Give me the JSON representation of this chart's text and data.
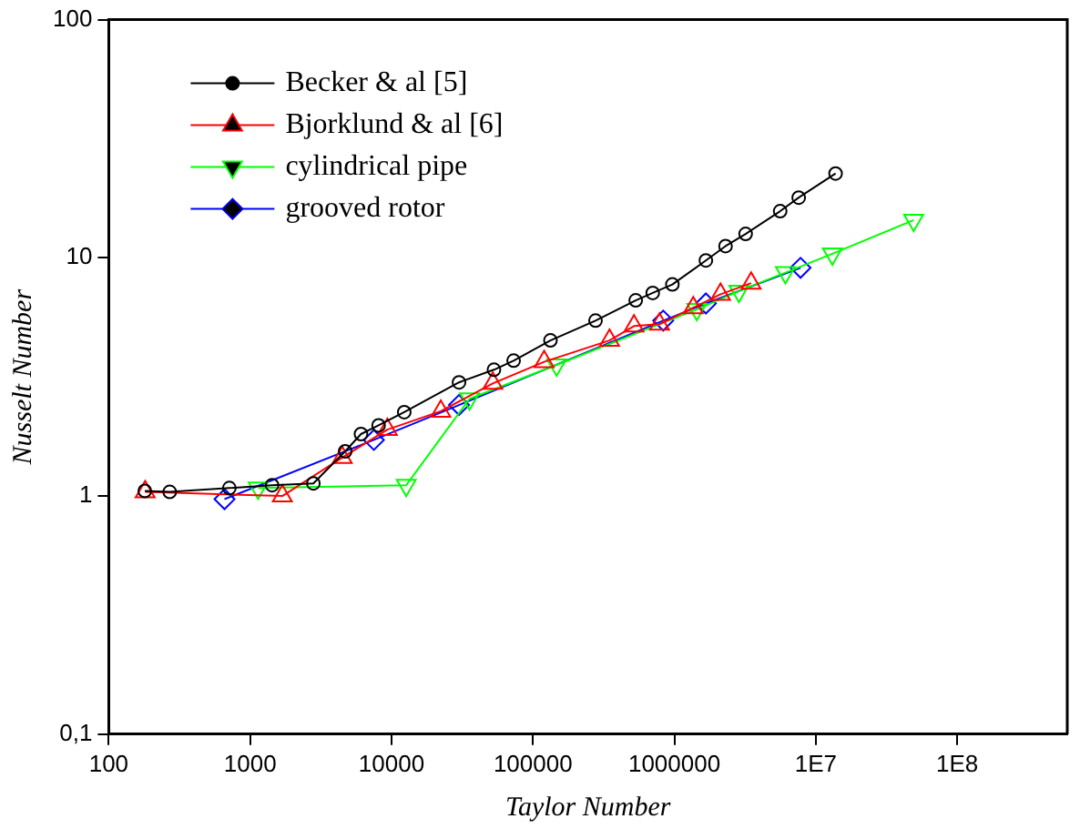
{
  "chart_data": {
    "type": "line",
    "xlabel": "Taylor Number",
    "ylabel": "Nusselt Number",
    "log": "xy",
    "grid": false,
    "legend": "top left",
    "line_style": "solid",
    "xlim": [
      100,
      600000000
    ],
    "ylim": [
      0.1,
      100
    ],
    "xticks": [
      100,
      1000,
      10000,
      100000,
      1000000,
      {
        "value": 10000000,
        "label": "1E7"
      },
      {
        "value": 100000000,
        "label": "1E8"
      }
    ],
    "yticks": [
      {
        "value": 0.1,
        "label": "0,1"
      },
      1,
      10,
      100
    ],
    "series": [
      {
        "name": "Becker & al [5]",
        "color": "#000000",
        "marker": "circle",
        "x": [
          180,
          270,
          713,
          1430,
          2800,
          4700,
          6080,
          8100,
          12300,
          30000,
          53000,
          73000,
          133000,
          277000,
          533000,
          703000,
          968000,
          1670000,
          2300000,
          3190000,
          5600000,
          7570000,
          13800000
        ],
        "values": [
          1.05,
          1.04,
          1.08,
          1.11,
          1.13,
          1.54,
          1.82,
          1.98,
          2.25,
          3.0,
          3.39,
          3.7,
          4.5,
          5.45,
          6.63,
          7.12,
          7.73,
          9.75,
          11.2,
          12.6,
          15.7,
          17.9,
          22.6
        ]
      },
      {
        "name": "Bjorklund & al [6]",
        "color": "#ff0000",
        "marker": "triangle",
        "x": [
          181,
          1690,
          4480,
          9340,
          22300,
          52000,
          120000,
          348000,
          518000,
          785000,
          1360000,
          2120000,
          3490000
        ],
        "values": [
          1.04,
          1.0,
          1.45,
          1.9,
          2.27,
          2.97,
          3.66,
          4.5,
          5.17,
          5.26,
          6.17,
          7.03,
          7.83
        ]
      },
      {
        "name": "cylindrical pipe",
        "color": "#00ff00",
        "marker": "triangle-down",
        "x": [
          1140,
          12700,
          35600,
          147000,
          1440000,
          2860000,
          6100000,
          13100000,
          49200000
        ],
        "values": [
          1.08,
          1.11,
          2.56,
          3.55,
          6.07,
          7.25,
          8.67,
          10.4,
          14.4
        ]
      },
      {
        "name": "grooved rotor",
        "color": "#0000ff",
        "marker": "diamond",
        "x": [
          659,
          7500,
          30000,
          834000,
          1670000,
          7800000
        ],
        "values": [
          0.97,
          1.72,
          2.41,
          5.45,
          6.43,
          9.08
        ]
      }
    ]
  }
}
